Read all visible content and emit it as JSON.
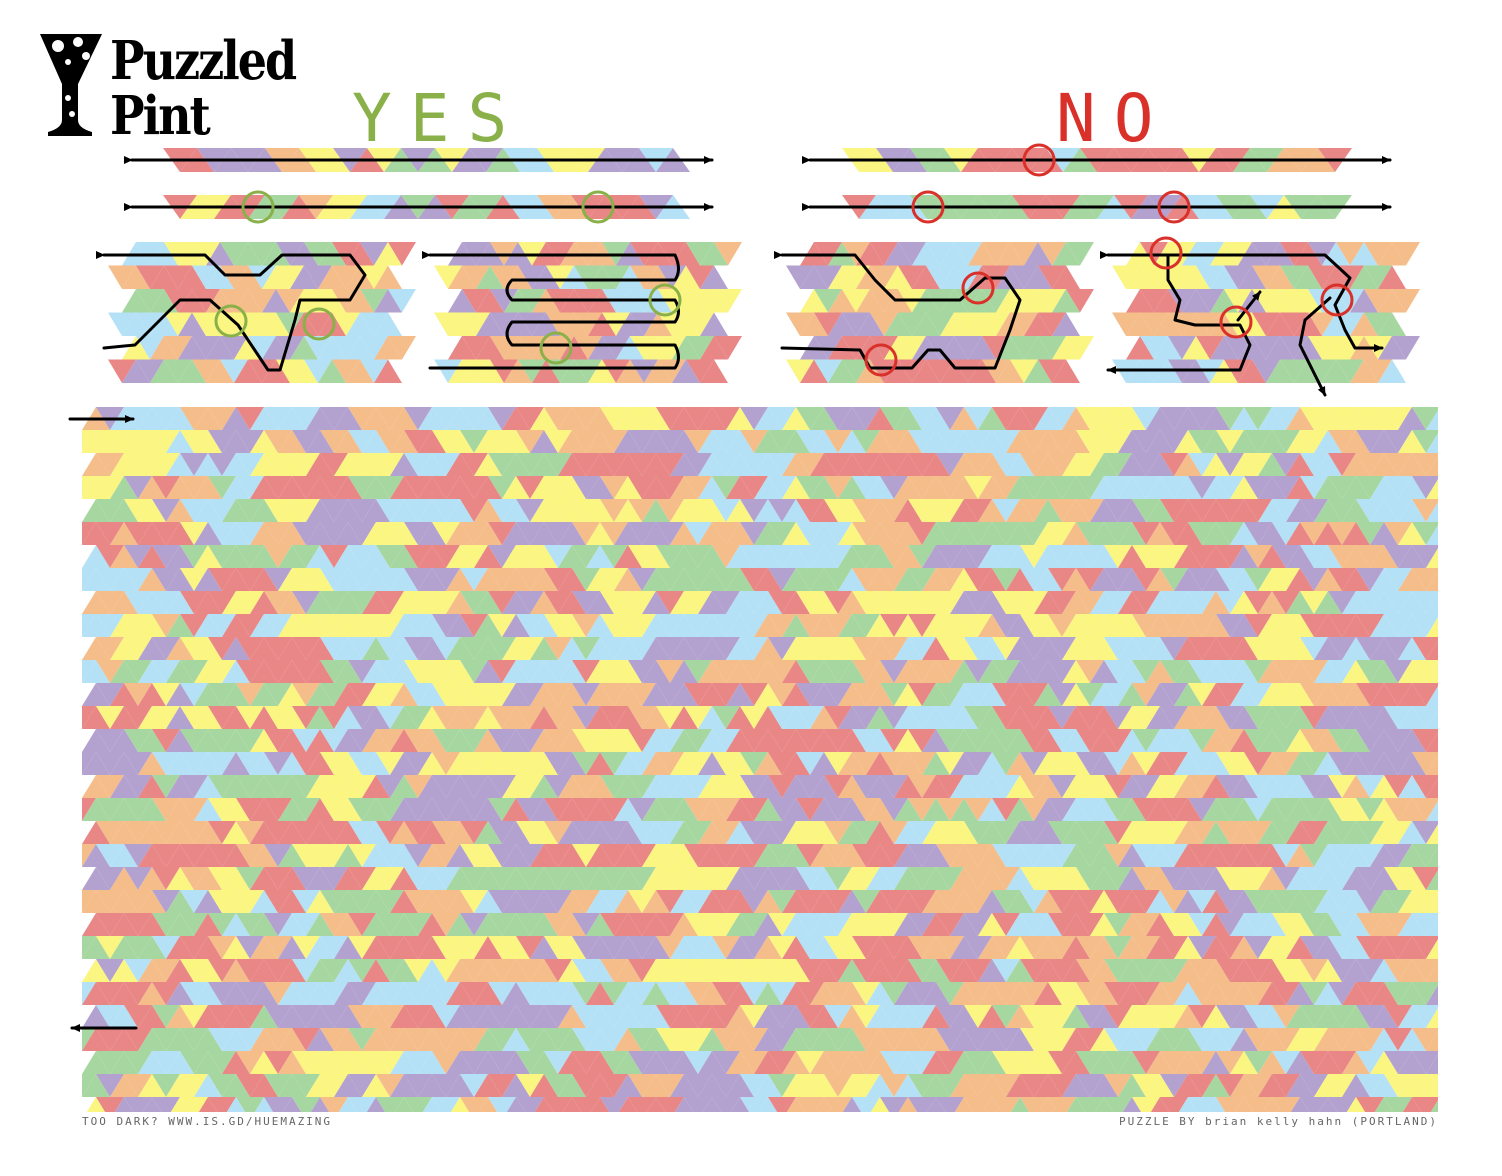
{
  "branding": {
    "logo_icon": "martini-glass-icon",
    "line1": "Puzzled",
    "line2": "Pint"
  },
  "examples": {
    "yes_label": "YES",
    "no_label": "NO",
    "yes_color": "#8ab04a",
    "no_color": "#d9302a"
  },
  "palette": [
    "#e98787",
    "#f4bd8a",
    "#fbf582",
    "#a7d7a0",
    "#b4e1f5",
    "#b3a2cf"
  ],
  "puzzle_grid": {
    "description_icon": "triangle-mosaic",
    "entry_arrow_icon": "arrow-right-icon",
    "exit_arrow_icon": "arrow-left-icon"
  },
  "footer": {
    "left": "TOO DARK? WWW.IS.GD/HUEMAZING",
    "right": "PUZZLE BY brian kelly hahn (PORTLAND)"
  }
}
